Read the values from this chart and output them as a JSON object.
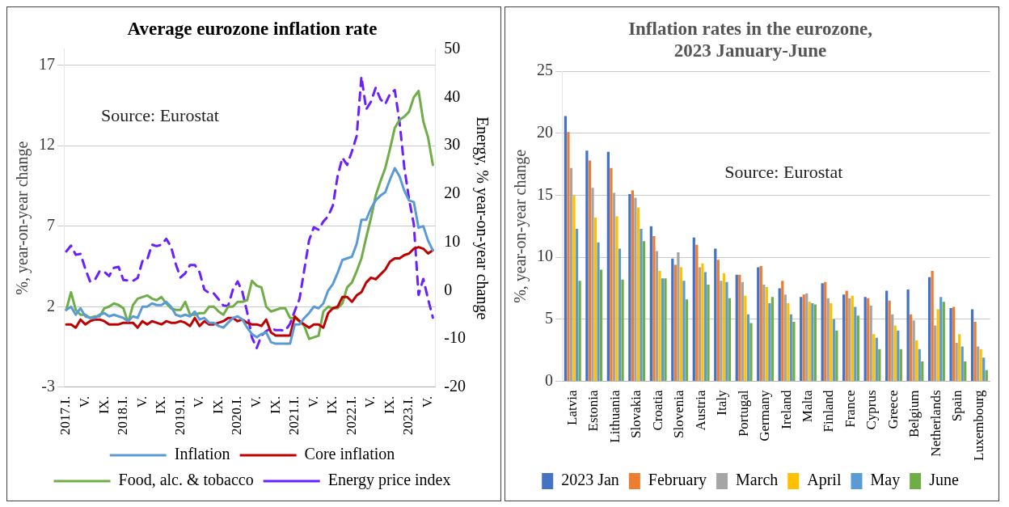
{
  "chart_data": [
    {
      "type": "line",
      "title": "Average eurozone inflation rate",
      "ylabel": "%, year-on-year change",
      "y2label": "Energy, % year-on-year change",
      "annotations": [
        "Source: Eurostat"
      ],
      "categories": [
        "2017.I.",
        null,
        null,
        null,
        "V.",
        null,
        null,
        null,
        "IX.",
        null,
        null,
        null,
        "2018.I.",
        null,
        null,
        null,
        "V.",
        null,
        null,
        null,
        "IX.",
        null,
        null,
        null,
        "2019.I.",
        null,
        null,
        null,
        "V.",
        null,
        null,
        null,
        "IX.",
        null,
        null,
        null,
        "2020.I.",
        null,
        null,
        null,
        "V.",
        null,
        null,
        null,
        "IX.",
        null,
        null,
        null,
        "2021.I.",
        null,
        null,
        null,
        "V.",
        null,
        null,
        null,
        "IX.",
        null,
        null,
        null,
        "2022.I.",
        null,
        null,
        null,
        "V.",
        null,
        null,
        null,
        "IX.",
        null,
        null,
        null,
        "2023.I.",
        null,
        null,
        null,
        "V.",
        null
      ],
      "series": [
        {
          "name": "Inflation",
          "color": "#5b9bd5",
          "values": [
            1.8,
            2.0,
            1.5,
            1.9,
            1.4,
            1.3,
            1.3,
            1.5,
            1.6,
            1.4,
            1.5,
            1.4,
            1.3,
            1.1,
            1.4,
            1.3,
            2.0,
            2.0,
            2.2,
            2.1,
            2.1,
            2.3,
            2.0,
            1.5,
            1.4,
            1.5,
            1.4,
            1.7,
            1.2,
            1.3,
            1.0,
            1.0,
            0.8,
            0.7,
            1.0,
            1.3,
            1.4,
            1.2,
            0.7,
            0.3,
            0.1,
            0.3,
            0.4,
            -0.2,
            -0.3,
            -0.3,
            -0.3,
            -0.3,
            0.9,
            0.9,
            1.3,
            1.6,
            2.0,
            1.9,
            2.2,
            3.0,
            3.4,
            4.1,
            4.9,
            5.0,
            5.1,
            5.9,
            7.4,
            7.4,
            8.1,
            8.6,
            8.9,
            9.1,
            9.9,
            10.6,
            10.1,
            9.2,
            8.6,
            8.5,
            6.9,
            7.0,
            6.1,
            5.5
          ]
        },
        {
          "name": "Core inflation",
          "color": "#c00000",
          "values": [
            0.9,
            0.9,
            0.7,
            1.2,
            0.9,
            1.1,
            1.2,
            1.2,
            1.1,
            0.9,
            0.9,
            0.9,
            1.0,
            1.0,
            1.0,
            0.7,
            1.1,
            0.9,
            1.1,
            1.0,
            0.9,
            1.1,
            1.0,
            1.0,
            1.1,
            1.0,
            0.8,
            1.3,
            0.8,
            1.1,
            0.9,
            0.9,
            1.0,
            1.1,
            1.3,
            1.3,
            1.1,
            1.2,
            1.0,
            0.9,
            0.9,
            0.8,
            1.2,
            0.4,
            0.2,
            0.2,
            0.2,
            0.2,
            1.4,
            1.1,
            0.9,
            0.7,
            0.9,
            0.9,
            0.7,
            1.6,
            1.9,
            2.0,
            2.6,
            2.6,
            2.3,
            2.7,
            2.9,
            3.5,
            3.8,
            3.7,
            4.0,
            4.3,
            4.8,
            5.0,
            5.0,
            5.2,
            5.3,
            5.6,
            5.7,
            5.6,
            5.3,
            5.5
          ]
        },
        {
          "name": "Food, alc. & tobacco",
          "color": "#70ad47",
          "values": [
            1.8,
            2.9,
            1.8,
            1.5,
            1.5,
            1.3,
            1.4,
            1.4,
            1.9,
            2.0,
            2.2,
            2.1,
            1.9,
            1.0,
            2.1,
            2.5,
            2.6,
            2.7,
            2.5,
            2.4,
            2.6,
            2.2,
            1.9,
            1.8,
            1.8,
            2.3,
            1.5,
            1.5,
            1.6,
            1.6,
            2.0,
            2.0,
            1.7,
            1.5,
            2.0,
            2.0,
            2.3,
            2.3,
            2.4,
            3.6,
            3.3,
            3.2,
            2.0,
            1.7,
            1.8,
            1.9,
            1.9,
            1.3,
            1.3,
            1.1,
            0.8,
            0.0,
            0.1,
            0.2,
            1.7,
            2.0,
            1.9,
            1.9,
            2.2,
            3.2,
            3.5,
            4.2,
            5.0,
            6.3,
            7.5,
            8.9,
            9.8,
            10.6,
            11.8,
            13.1,
            13.6,
            13.8,
            14.1,
            15.0,
            15.4,
            13.5,
            12.5,
            10.8
          ]
        },
        {
          "name": "Energy price index",
          "color": "#6a1fff",
          "axis": "y2",
          "line_style": "dashed",
          "values": [
            8.1,
            9.3,
            7.4,
            7.6,
            4.5,
            1.9,
            2.2,
            4.0,
            3.9,
            3.0,
            4.7,
            4.9,
            2.2,
            2.1,
            2.0,
            2.6,
            6.1,
            6.4,
            9.5,
            9.2,
            9.5,
            10.7,
            9.1,
            5.5,
            2.7,
            3.6,
            5.3,
            5.3,
            3.8,
            0.2,
            -0.5,
            -0.6,
            -1.8,
            -3.1,
            -3.2,
            0.2,
            1.9,
            -0.3,
            -4.5,
            -9.7,
            -11.9,
            -9.3,
            -8.4,
            -7.8,
            -8.2,
            -8.2,
            -8.3,
            -6.9,
            -4.2,
            -1.7,
            4.3,
            10.4,
            13.1,
            12.6,
            14.3,
            15.4,
            17.6,
            23.7,
            27.5,
            26.0,
            28.8,
            32.0,
            44.3,
            37.5,
            39.1,
            42.0,
            39.6,
            38.6,
            40.7,
            41.5,
            34.9,
            25.5,
            18.9,
            13.7,
            -0.9,
            2.4,
            -1.8,
            -5.6
          ]
        }
      ],
      "ylim": [
        -3,
        18
      ],
      "yticks": [
        -3,
        2,
        7,
        12,
        17
      ],
      "y2lim": [
        -20,
        50
      ],
      "y2ticks": [
        -20,
        -10,
        0,
        10,
        20,
        30,
        40,
        50
      ],
      "grid": "y",
      "legend": "bottom"
    },
    {
      "type": "bar",
      "title": "Inflation rates in the eurozone,\n2023 January-June",
      "ylabel": "%, year-on-year change",
      "annotations": [
        "Source: Eurostat"
      ],
      "categories": [
        "Latvia",
        "Estonia",
        "Lithuania",
        "Slovakia",
        "Croatia",
        "Slovenia",
        "Austria",
        "Italy",
        "Portugal",
        "Germany",
        "Ireland",
        "Malta",
        "Finland",
        "France",
        "Cyprus",
        "Greece",
        "Belgium",
        "Netherlands",
        "Spain",
        "Luxembourg"
      ],
      "series": [
        {
          "name": "2023 Jan",
          "color": "#4472c4",
          "values": [
            21.4,
            18.6,
            18.5,
            15.1,
            12.5,
            9.9,
            11.6,
            10.7,
            8.6,
            9.2,
            7.5,
            6.8,
            7.9,
            7.0,
            6.8,
            7.3,
            7.4,
            8.4,
            5.9,
            5.8
          ]
        },
        {
          "name": "February",
          "color": "#ed7d31",
          "values": [
            20.1,
            17.8,
            17.2,
            15.4,
            11.7,
            9.4,
            11.0,
            9.8,
            8.6,
            9.3,
            8.1,
            7.0,
            8.0,
            7.3,
            6.7,
            6.5,
            5.4,
            8.9,
            6.0,
            4.8
          ]
        },
        {
          "name": "March",
          "color": "#a5a5a5",
          "values": [
            17.2,
            15.6,
            15.2,
            14.8,
            10.5,
            10.4,
            9.2,
            8.1,
            8.0,
            7.8,
            7.0,
            7.1,
            6.7,
            6.7,
            6.1,
            5.4,
            4.9,
            4.5,
            3.1,
            2.8
          ]
        },
        {
          "name": "April",
          "color": "#ffc000",
          "values": [
            15.0,
            13.2,
            13.3,
            14.0,
            8.9,
            9.2,
            9.5,
            8.7,
            6.9,
            7.6,
            6.3,
            6.4,
            6.3,
            6.9,
            3.8,
            4.5,
            3.3,
            5.8,
            3.8,
            2.6
          ]
        },
        {
          "name": "May",
          "color": "#5b9bd5",
          "values": [
            12.3,
            11.2,
            10.7,
            12.3,
            8.3,
            8.1,
            8.8,
            8.0,
            5.4,
            6.3,
            5.4,
            6.3,
            5.0,
            6.0,
            3.5,
            4.1,
            2.6,
            6.8,
            2.8,
            1.9
          ]
        },
        {
          "name": "June",
          "color": "#70ad47",
          "values": [
            8.1,
            9.0,
            8.2,
            11.3,
            8.3,
            6.6,
            7.8,
            6.7,
            4.7,
            6.8,
            4.8,
            6.2,
            4.1,
            5.3,
            2.6,
            2.6,
            1.6,
            6.4,
            1.6,
            0.9
          ]
        }
      ],
      "ylim": [
        0,
        25
      ],
      "yticks": [
        0,
        5,
        10,
        15,
        20,
        25
      ],
      "grid": "y",
      "legend": "bottom"
    }
  ]
}
